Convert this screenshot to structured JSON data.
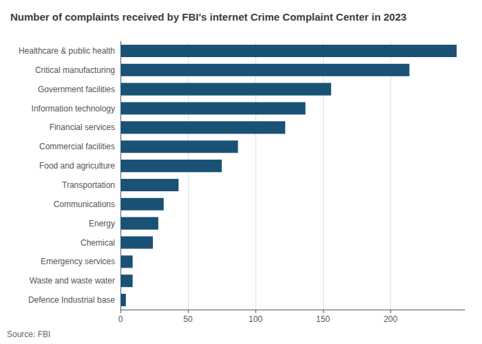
{
  "chart_data": {
    "type": "bar",
    "orientation": "horizontal",
    "title": "Number of complaints received by FBI's internet Crime Complaint Center in 2023",
    "annotations": [
      "Source: FBI"
    ],
    "categories": [
      "Healthcare & public health",
      "Critical manufacturing",
      "Government facilities",
      "Information technology",
      "Financial services",
      "Commercial facilities",
      "Food and agriculture",
      "Transportation",
      "Communications",
      "Energy",
      "Chemical",
      "Emergency services",
      "Waste and waste water",
      "Defence Industrial base"
    ],
    "values": [
      249,
      214,
      156,
      137,
      122,
      87,
      75,
      43,
      32,
      28,
      24,
      9,
      9,
      4
    ],
    "color": "#1a5276",
    "xlim": [
      0,
      255
    ],
    "xticks": [
      0,
      50,
      100,
      150,
      200
    ],
    "grid": true
  }
}
